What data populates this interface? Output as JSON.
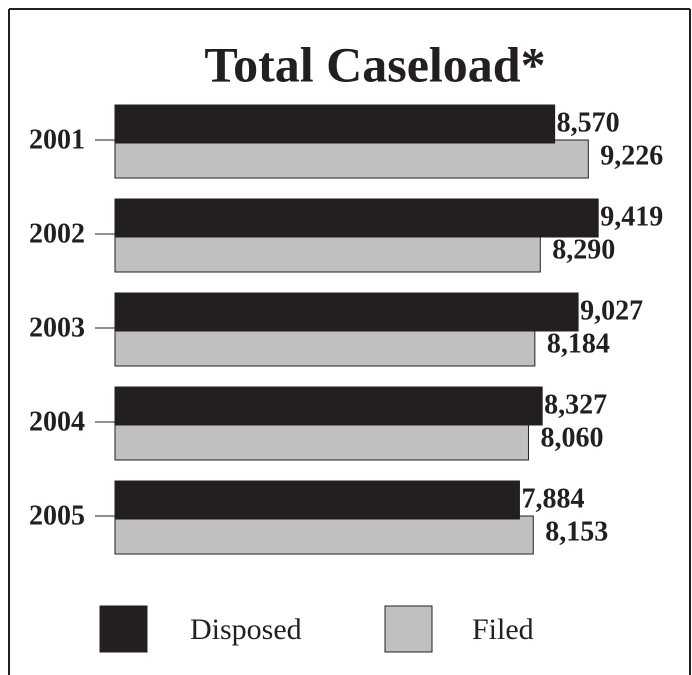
{
  "chart_data": {
    "type": "hbar",
    "title": "Total Caseload*",
    "categories": [
      "2001",
      "2002",
      "2003",
      "2004",
      "2005"
    ],
    "series": [
      {
        "name": "Disposed",
        "color": "#231f20",
        "values": [
          8570,
          9419,
          9027,
          8327,
          7884
        ],
        "value_labels": [
          "8,570",
          "9,419",
          "9,027",
          "8,327",
          "7,884"
        ]
      },
      {
        "name": "Filed",
        "color": "#c0c0c0",
        "values": [
          9226,
          8290,
          8184,
          8060,
          8153
        ],
        "value_labels": [
          "9,226",
          "8,290",
          "8,184",
          "8,060",
          "8,153"
        ]
      }
    ],
    "xlim": [
      0,
      10000
    ]
  }
}
